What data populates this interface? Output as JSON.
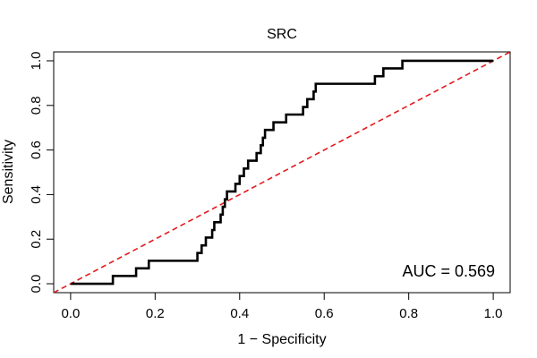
{
  "chart_data": {
    "type": "line",
    "title": "SRC",
    "xlabel": "1 − Specificity",
    "ylabel": "Sensitivity",
    "xlim": [
      -0.04,
      1.04
    ],
    "ylim": [
      -0.04,
      1.04
    ],
    "x_ticks": [
      "0.0",
      "0.2",
      "0.4",
      "0.6",
      "0.8",
      "1.0"
    ],
    "y_ticks": [
      "0.0",
      "0.2",
      "0.4",
      "0.6",
      "0.8",
      "1.0"
    ],
    "grid": false,
    "annotation": "AUC = 0.569",
    "colors": {
      "roc": "#000000",
      "reference": "#e31a1c"
    },
    "series": [
      {
        "values": [
          [
            0.0,
            0.0
          ],
          [
            0.1,
            0.0
          ],
          [
            0.1,
            0.035
          ],
          [
            0.155,
            0.035
          ],
          [
            0.155,
            0.069
          ],
          [
            0.185,
            0.069
          ],
          [
            0.185,
            0.103
          ],
          [
            0.3,
            0.103
          ],
          [
            0.3,
            0.138
          ],
          [
            0.31,
            0.138
          ],
          [
            0.31,
            0.172
          ],
          [
            0.32,
            0.172
          ],
          [
            0.32,
            0.207
          ],
          [
            0.335,
            0.207
          ],
          [
            0.335,
            0.241
          ],
          [
            0.34,
            0.241
          ],
          [
            0.34,
            0.276
          ],
          [
            0.355,
            0.276
          ],
          [
            0.355,
            0.31
          ],
          [
            0.36,
            0.31
          ],
          [
            0.36,
            0.345
          ],
          [
            0.365,
            0.345
          ],
          [
            0.365,
            0.379
          ],
          [
            0.37,
            0.379
          ],
          [
            0.37,
            0.414
          ],
          [
            0.39,
            0.414
          ],
          [
            0.39,
            0.448
          ],
          [
            0.4,
            0.448
          ],
          [
            0.4,
            0.483
          ],
          [
            0.41,
            0.483
          ],
          [
            0.41,
            0.517
          ],
          [
            0.42,
            0.517
          ],
          [
            0.42,
            0.552
          ],
          [
            0.44,
            0.552
          ],
          [
            0.44,
            0.586
          ],
          [
            0.45,
            0.586
          ],
          [
            0.45,
            0.621
          ],
          [
            0.455,
            0.621
          ],
          [
            0.455,
            0.655
          ],
          [
            0.46,
            0.655
          ],
          [
            0.46,
            0.69
          ],
          [
            0.48,
            0.69
          ],
          [
            0.48,
            0.724
          ],
          [
            0.51,
            0.724
          ],
          [
            0.51,
            0.759
          ],
          [
            0.55,
            0.759
          ],
          [
            0.55,
            0.793
          ],
          [
            0.56,
            0.793
          ],
          [
            0.56,
            0.828
          ],
          [
            0.575,
            0.828
          ],
          [
            0.575,
            0.862
          ],
          [
            0.58,
            0.862
          ],
          [
            0.58,
            0.897
          ],
          [
            0.72,
            0.897
          ],
          [
            0.72,
            0.931
          ],
          [
            0.74,
            0.931
          ],
          [
            0.74,
            0.966
          ],
          [
            0.785,
            0.966
          ],
          [
            0.785,
            1.0
          ],
          [
            1.0,
            1.0
          ]
        ]
      },
      {
        "values": [
          [
            -0.04,
            -0.04
          ],
          [
            1.04,
            1.04
          ]
        ]
      }
    ]
  }
}
